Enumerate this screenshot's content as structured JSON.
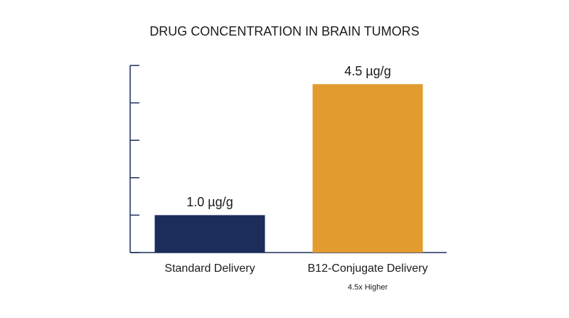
{
  "chart_data": {
    "type": "bar",
    "title": "DRUG CONCENTRATION IN BRAIN TUMORS",
    "categories": [
      "Standard Delivery",
      "B12-Conjugate Delivery"
    ],
    "values": [
      1.0,
      4.5
    ],
    "value_labels": [
      "1.0 µg/g",
      "4.5 µg/g"
    ],
    "colors": [
      "#1c2d5c",
      "#e29b2f"
    ],
    "annotation": "4.5x Higher",
    "ylim": [
      0,
      5
    ],
    "yticks": [
      0,
      1,
      2,
      3,
      4,
      5
    ]
  }
}
